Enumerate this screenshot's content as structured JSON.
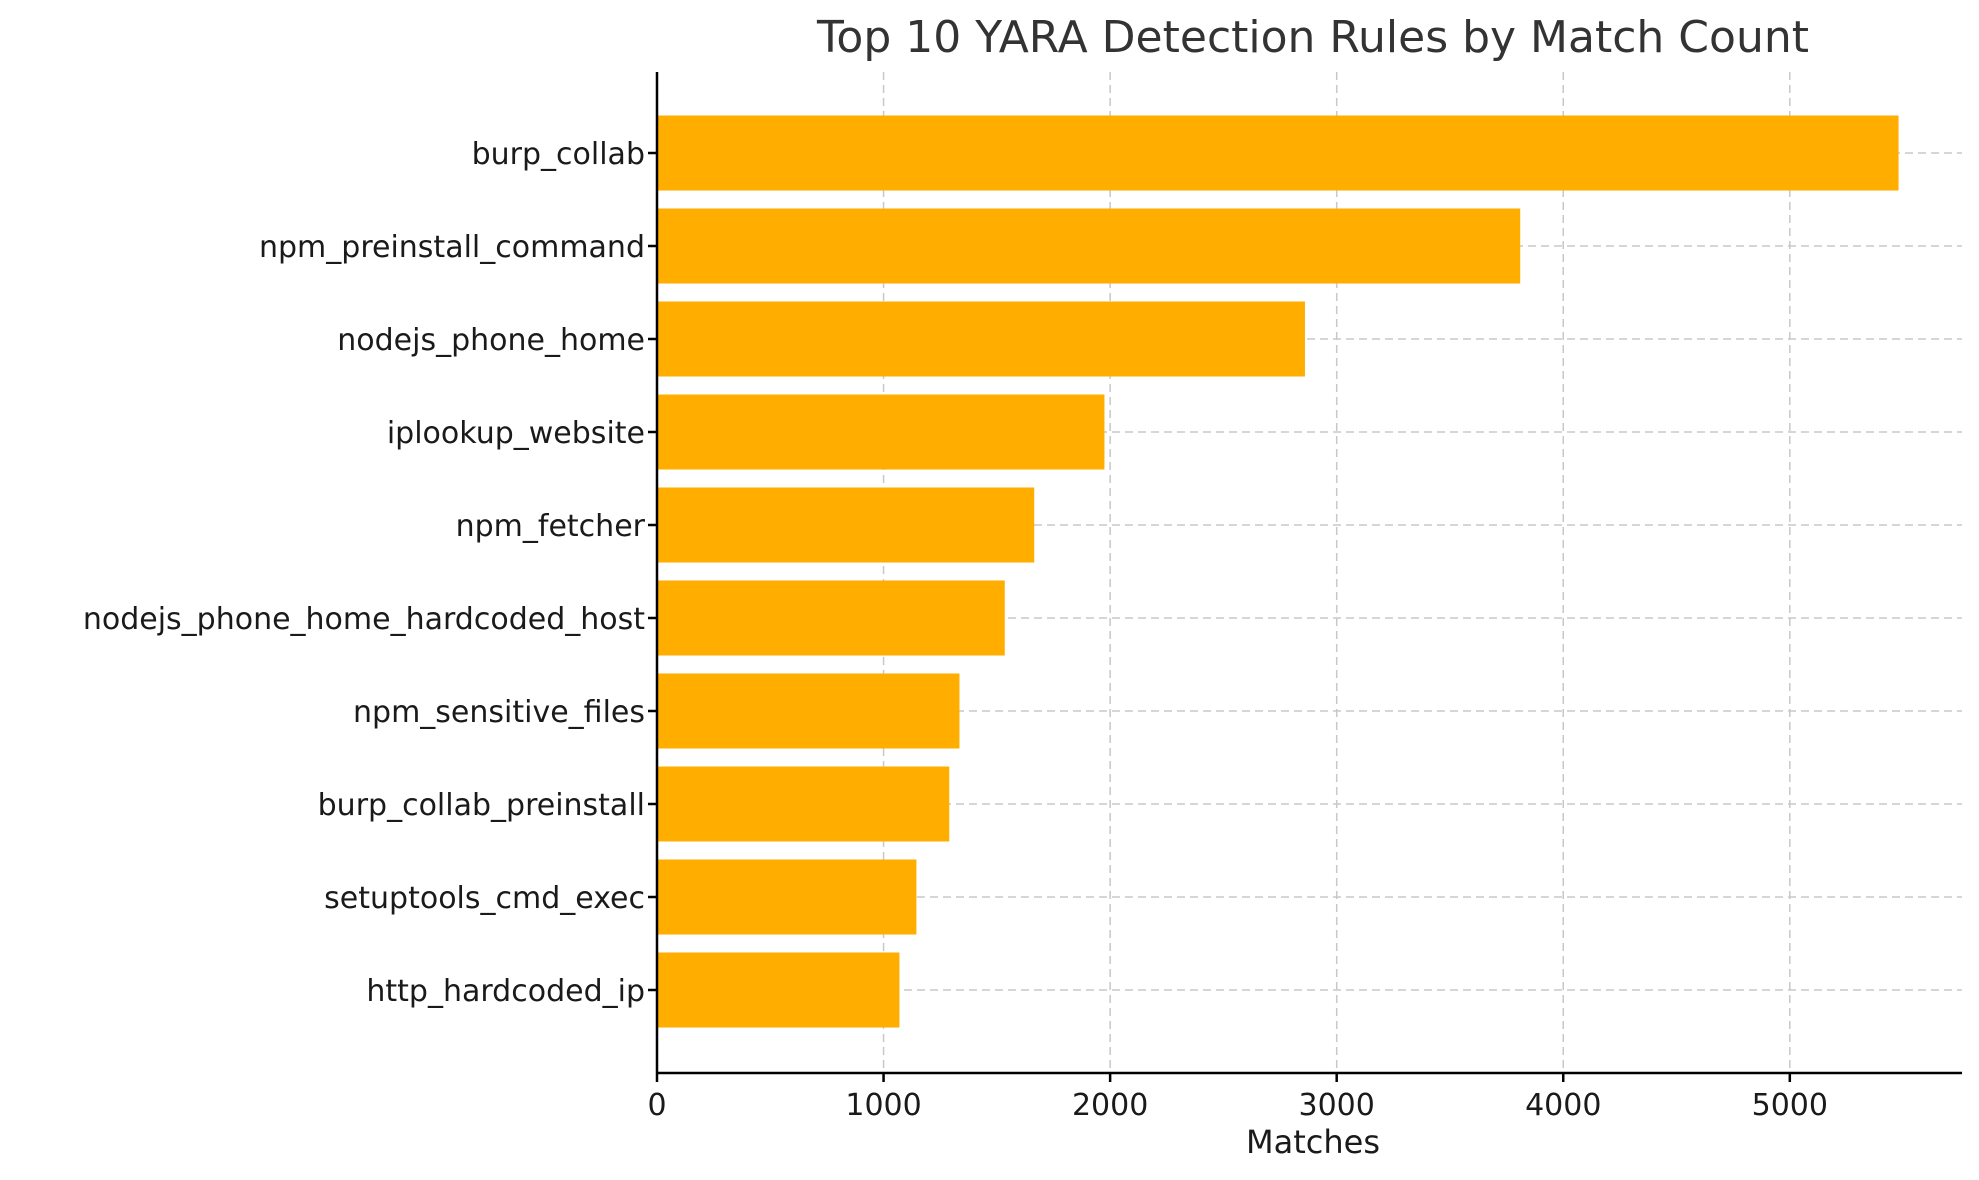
{
  "chart_data": {
    "type": "bar",
    "orientation": "horizontal",
    "title": "Top 10 YARA Detection Rules by Match Count",
    "xlabel": "Matches",
    "ylabel": "",
    "categories": [
      "burp_collab",
      "npm_preinstall_command",
      "nodejs_phone_home",
      "iplookup_website",
      "npm_fetcher",
      "nodejs_phone_home_hardcoded_host",
      "npm_sensitive_files",
      "burp_collab_preinstall",
      "setuptools_cmd_exec",
      "http_hardcoded_ip"
    ],
    "values": [
      5480,
      3810,
      2860,
      1975,
      1665,
      1535,
      1335,
      1290,
      1145,
      1070
    ],
    "xlim": [
      0,
      5760
    ],
    "xticks": [
      0,
      1000,
      2000,
      3000,
      4000,
      5000
    ],
    "grid": true,
    "bar_color": "#ffae00"
  }
}
